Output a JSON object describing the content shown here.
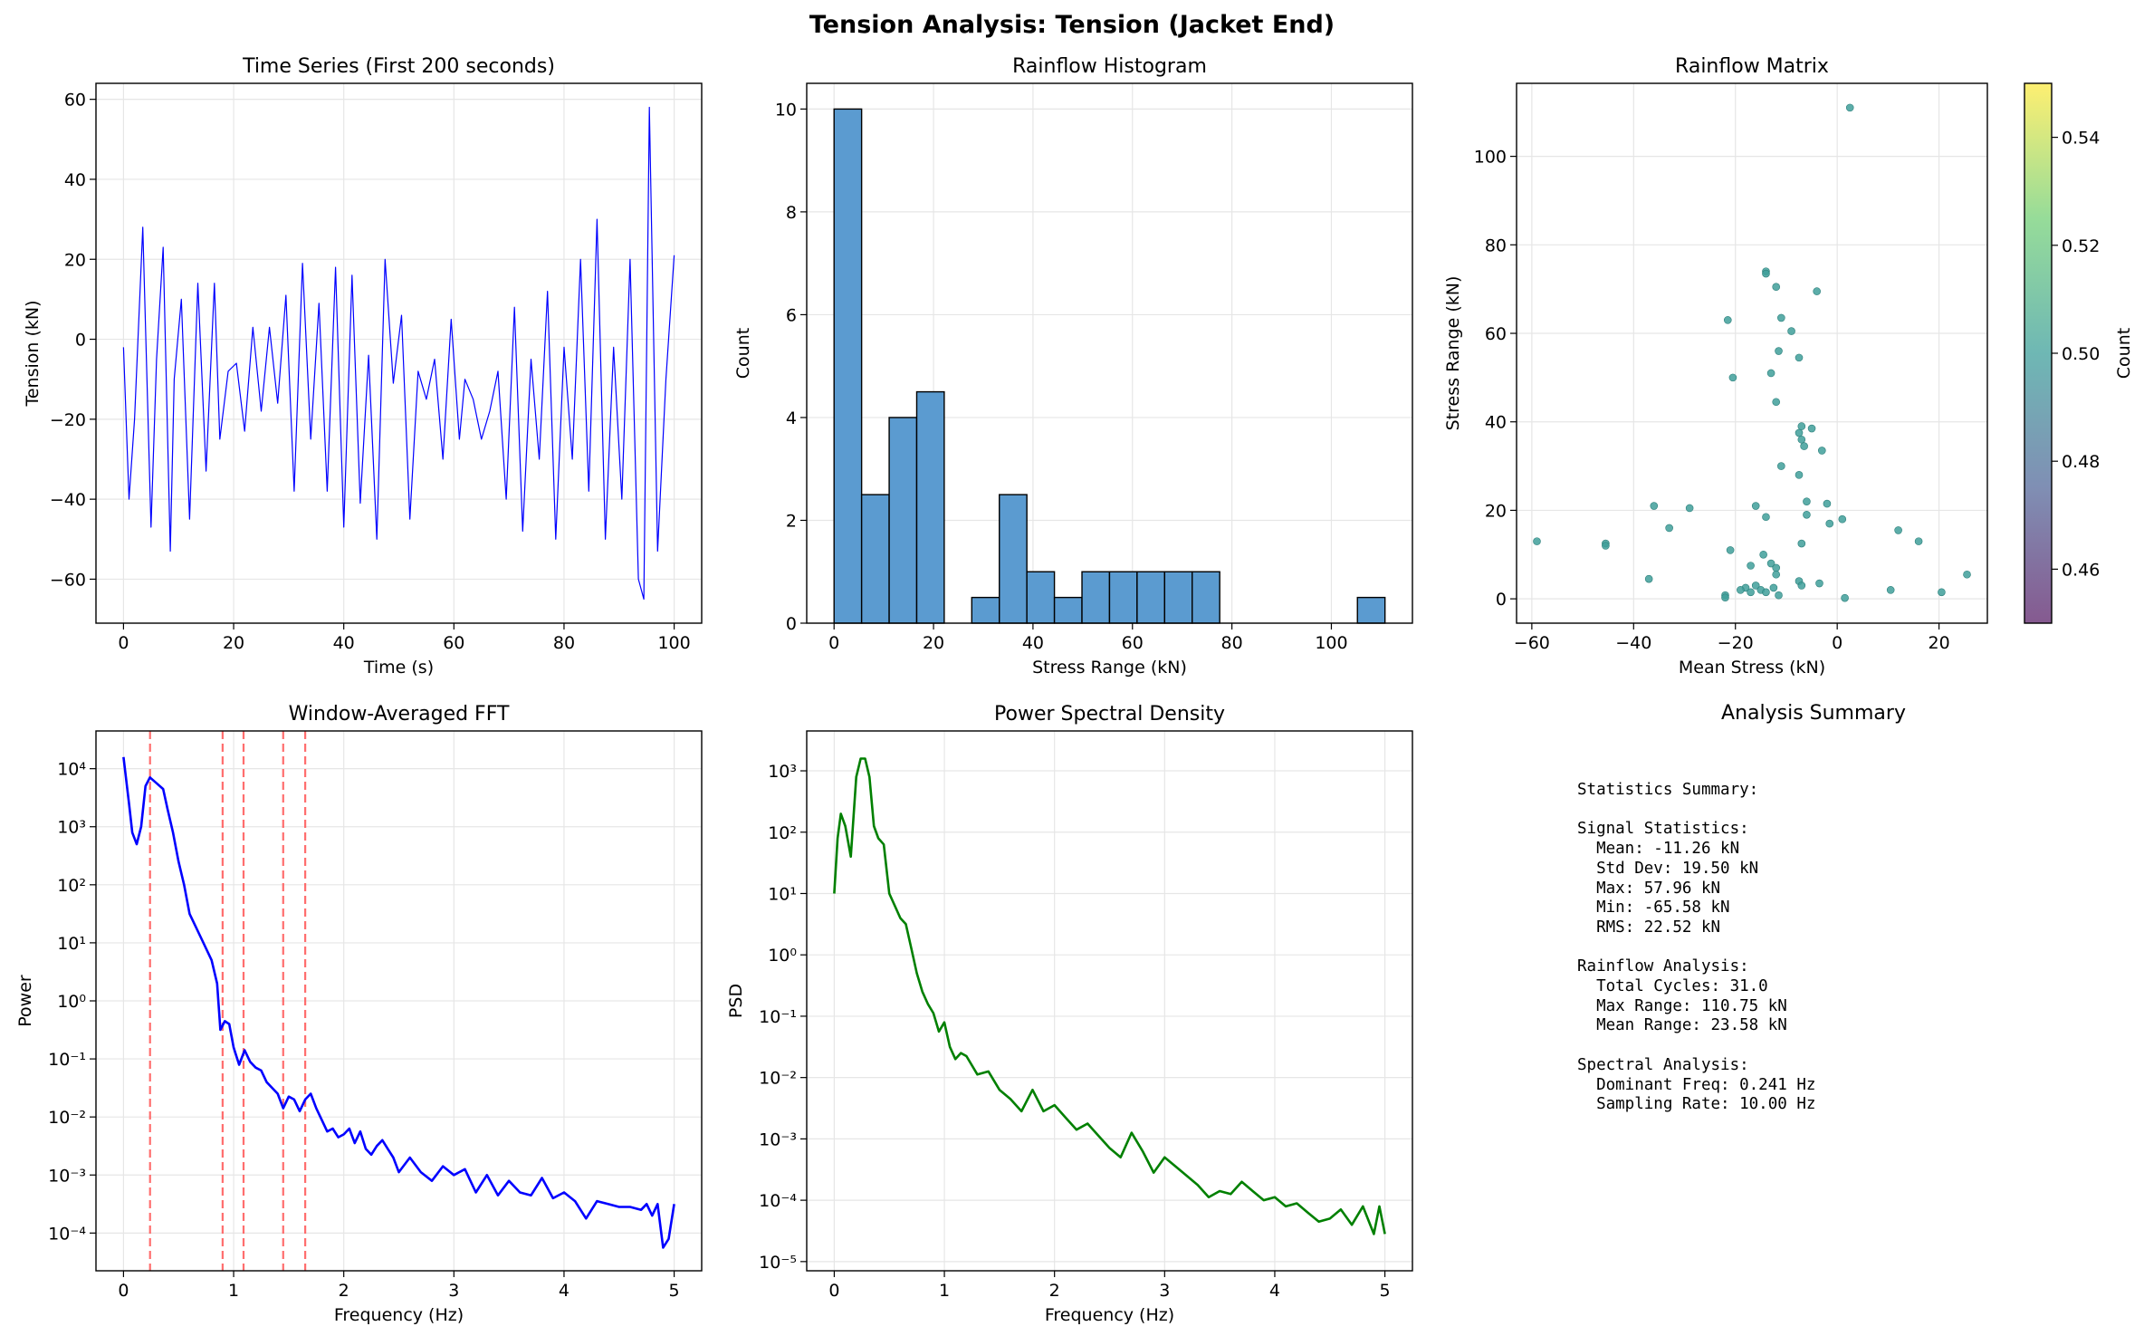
{
  "suptitle": "Tension Analysis: Tension (Jacket End)",
  "colors": {
    "timeseries": "#0000ff",
    "hist_fill": "#5b9bd0",
    "fft_line": "#0000ff",
    "fft_peak": "#ff5555",
    "psd_line": "#008000",
    "scatter": "#3f9f9a",
    "grid": "#e6e6e6"
  },
  "chart_data": [
    {
      "id": "timeseries",
      "type": "line",
      "title": "Time Series (First 200 seconds)",
      "xlabel": "Time (s)",
      "ylabel": "Tension (kN)",
      "xlim": [
        -5,
        105
      ],
      "ylim": [
        -71,
        64
      ],
      "xticks": [
        0,
        20,
        40,
        60,
        80,
        100
      ],
      "yticks": [
        -60,
        -40,
        -20,
        0,
        20,
        40,
        60
      ],
      "grid": true,
      "series": [
        {
          "x": [
            0,
            1,
            2,
            3.5,
            5,
            6,
            7.2,
            8.5,
            9.2,
            10.5,
            12,
            13.5,
            15,
            16.5,
            17.5,
            19,
            20.5,
            22,
            23.5,
            25,
            26.5,
            28,
            29.5,
            31,
            32.5,
            34,
            35.5,
            37,
            38.5,
            40,
            41.5,
            43,
            44.5,
            46,
            47.5,
            49,
            50.5,
            52,
            53.5,
            55,
            56.5,
            58,
            59.5,
            61,
            62,
            63.5,
            65,
            66.5,
            68,
            69.5,
            71,
            72.5,
            74,
            75.5,
            77,
            78.5,
            80,
            81.5,
            83,
            84.5,
            86,
            87.5,
            89,
            90.5,
            92,
            93.5,
            94.5,
            95.5,
            97,
            98.5,
            100
          ],
          "y": [
            -2,
            -40,
            -20,
            28,
            -47,
            -5,
            23,
            -53,
            -10,
            10,
            -45,
            14,
            -33,
            14,
            -25,
            -8,
            -6,
            -23,
            3,
            -18,
            3,
            -16,
            11,
            -38,
            19,
            -25,
            9,
            -38,
            18,
            -47,
            16,
            -41,
            -4,
            -50,
            20,
            -11,
            6,
            -45,
            -8,
            -15,
            -5,
            -30,
            5,
            -25,
            -10,
            -15,
            -25,
            -18,
            -8,
            -40,
            8,
            -48,
            -5,
            -30,
            12,
            -50,
            -2,
            -30,
            20,
            -38,
            30,
            -50,
            -2,
            -40,
            20,
            -60,
            -65,
            58,
            -53,
            -10,
            21
          ]
        }
      ]
    },
    {
      "id": "rainflow_hist",
      "type": "bar",
      "title": "Rainflow Histogram",
      "xlabel": "Stress Range (kN)",
      "ylabel": "Count",
      "xlim": [
        -5.5,
        116.3
      ],
      "ylim": [
        0,
        10.5
      ],
      "xticks": [
        0,
        20,
        40,
        60,
        80,
        100
      ],
      "yticks": [
        0,
        2,
        4,
        6,
        8,
        10
      ],
      "grid": true,
      "bin_edges": [
        0,
        5.54,
        11.08,
        16.62,
        22.15,
        27.69,
        33.23,
        38.77,
        44.31,
        49.85,
        55.39,
        60.93,
        66.47,
        72.01,
        77.55,
        83.09,
        88.62,
        94.16,
        99.7,
        105.24,
        110.78
      ],
      "values": [
        10,
        2.5,
        4,
        4.5,
        0,
        0.5,
        2.5,
        1,
        0.5,
        1,
        1,
        1,
        1,
        1,
        0,
        0,
        0,
        0,
        0,
        0.5
      ]
    },
    {
      "id": "rainflow_matrix",
      "type": "scatter",
      "title": "Rainflow Matrix",
      "xlabel": "Mean Stress (kN)",
      "ylabel": "Stress Range (kN)",
      "xlim": [
        -63,
        29.5
      ],
      "ylim": [
        -5.5,
        116.5
      ],
      "xticks": [
        -60,
        -40,
        -20,
        0,
        20
      ],
      "yticks": [
        0,
        20,
        40,
        60,
        80,
        100
      ],
      "grid": true,
      "colorbar": {
        "label": "Count",
        "range": [
          0.45,
          0.55
        ],
        "ticks": [
          0.46,
          0.48,
          0.5,
          0.52,
          0.54
        ]
      },
      "points": [
        [
          2.5,
          111
        ],
        [
          -14,
          74
        ],
        [
          -14,
          73.5
        ],
        [
          -12,
          70.5
        ],
        [
          -4,
          69.5
        ],
        [
          -11,
          63.5
        ],
        [
          -21.5,
          63
        ],
        [
          -9,
          60.5
        ],
        [
          -11.5,
          56
        ],
        [
          -7.5,
          54.5
        ],
        [
          -13,
          51
        ],
        [
          -20.5,
          50
        ],
        [
          -12,
          44.5
        ],
        [
          -7,
          39
        ],
        [
          -7.5,
          37.5
        ],
        [
          -7,
          36
        ],
        [
          -5,
          38.5
        ],
        [
          -6.5,
          34.5
        ],
        [
          -3,
          33.5
        ],
        [
          -11,
          30
        ],
        [
          -7.5,
          28
        ],
        [
          -6,
          22
        ],
        [
          -2,
          21.5
        ],
        [
          -36,
          21
        ],
        [
          -29,
          20.5
        ],
        [
          -16,
          21
        ],
        [
          -6,
          19
        ],
        [
          -14,
          18.5
        ],
        [
          1,
          18
        ],
        [
          -1.5,
          17
        ],
        [
          -33,
          16
        ],
        [
          12,
          15.5
        ],
        [
          16,
          13
        ],
        [
          -59,
          13
        ],
        [
          -45.5,
          12.5
        ],
        [
          -45.5,
          12
        ],
        [
          -7,
          12.5
        ],
        [
          -21,
          11
        ],
        [
          -14.5,
          10
        ],
        [
          -13,
          8
        ],
        [
          -12,
          7
        ],
        [
          -17,
          7.5
        ],
        [
          25.5,
          5.5
        ],
        [
          -12,
          5.5
        ],
        [
          -7.5,
          4
        ],
        [
          -7,
          3
        ],
        [
          -3.5,
          3.5
        ],
        [
          -37,
          4.5
        ],
        [
          -16,
          3
        ],
        [
          -18,
          2.5
        ],
        [
          -15,
          2
        ],
        [
          -12.5,
          2.5
        ],
        [
          10.5,
          2
        ],
        [
          20.5,
          1.5
        ],
        [
          -17,
          1.5
        ],
        [
          -14,
          1.5
        ],
        [
          -22,
          0.8
        ],
        [
          -22,
          0.3
        ],
        [
          -11.5,
          0.8
        ],
        [
          1.5,
          0.2
        ],
        [
          -19,
          2
        ]
      ]
    },
    {
      "id": "fft",
      "type": "line",
      "title": "Window-Averaged FFT",
      "xlabel": "Frequency (Hz)",
      "ylabel": "Power",
      "yscale": "log",
      "xlim": [
        -0.25,
        5.25
      ],
      "ylim_log10": [
        -4.65,
        4.65
      ],
      "xticks": [
        0,
        1,
        2,
        3,
        4,
        5
      ],
      "yticks_log10": [
        -4,
        -3,
        -2,
        -1,
        0,
        1,
        2,
        3,
        4
      ],
      "grid": true,
      "peak_markers": [
        0.241,
        0.9,
        1.09,
        1.45,
        1.65
      ],
      "series": [
        {
          "x": [
            0,
            0.05,
            0.08,
            0.12,
            0.16,
            0.2,
            0.24,
            0.3,
            0.36,
            0.4,
            0.45,
            0.5,
            0.55,
            0.6,
            0.7,
            0.8,
            0.85,
            0.88,
            0.92,
            0.96,
            1.0,
            1.05,
            1.1,
            1.15,
            1.2,
            1.25,
            1.3,
            1.35,
            1.4,
            1.45,
            1.5,
            1.55,
            1.6,
            1.65,
            1.7,
            1.75,
            1.8,
            1.85,
            1.9,
            1.95,
            2.0,
            2.05,
            2.1,
            2.15,
            2.2,
            2.25,
            2.3,
            2.35,
            2.4,
            2.45,
            2.5,
            2.6,
            2.7,
            2.8,
            2.9,
            3.0,
            3.1,
            3.2,
            3.3,
            3.4,
            3.5,
            3.6,
            3.7,
            3.8,
            3.9,
            4.0,
            4.1,
            4.2,
            4.3,
            4.4,
            4.5,
            4.6,
            4.7,
            4.75,
            4.8,
            4.85,
            4.9,
            4.95,
            5.0
          ],
          "y": [
            4.2,
            3.4,
            2.9,
            2.7,
            3.0,
            3.7,
            3.85,
            3.75,
            3.65,
            3.3,
            2.9,
            2.4,
            2.0,
            1.5,
            1.1,
            0.7,
            0.3,
            -0.5,
            -0.35,
            -0.4,
            -0.8,
            -1.1,
            -0.85,
            -1.05,
            -1.15,
            -1.2,
            -1.4,
            -1.5,
            -1.6,
            -1.85,
            -1.65,
            -1.7,
            -1.9,
            -1.7,
            -1.6,
            -1.85,
            -2.05,
            -2.25,
            -2.2,
            -2.35,
            -2.3,
            -2.2,
            -2.45,
            -2.25,
            -2.55,
            -2.65,
            -2.5,
            -2.4,
            -2.55,
            -2.7,
            -2.95,
            -2.7,
            -2.95,
            -3.1,
            -2.85,
            -3.0,
            -2.9,
            -3.3,
            -3.0,
            -3.35,
            -3.1,
            -3.3,
            -3.35,
            -3.05,
            -3.4,
            -3.3,
            -3.45,
            -3.75,
            -3.45,
            -3.5,
            -3.55,
            -3.55,
            -3.6,
            -3.5,
            -3.7,
            -3.5,
            -4.25,
            -4.1,
            -3.5
          ]
        }
      ]
    },
    {
      "id": "psd",
      "type": "line",
      "title": "Power Spectral Density",
      "xlabel": "Frequency (Hz)",
      "ylabel": "PSD",
      "yscale": "log",
      "xlim": [
        -0.25,
        5.25
      ],
      "ylim_log10": [
        -5.15,
        3.65
      ],
      "xticks": [
        0,
        1,
        2,
        3,
        4,
        5
      ],
      "yticks_log10": [
        -5,
        -4,
        -3,
        -2,
        -1,
        0,
        1,
        2,
        3
      ],
      "grid": true,
      "series": [
        {
          "x": [
            0,
            0.03,
            0.06,
            0.1,
            0.15,
            0.2,
            0.24,
            0.28,
            0.32,
            0.36,
            0.4,
            0.45,
            0.5,
            0.55,
            0.6,
            0.65,
            0.7,
            0.75,
            0.8,
            0.85,
            0.9,
            0.95,
            1.0,
            1.05,
            1.1,
            1.15,
            1.2,
            1.3,
            1.4,
            1.5,
            1.6,
            1.7,
            1.8,
            1.9,
            2.0,
            2.1,
            2.2,
            2.3,
            2.4,
            2.5,
            2.6,
            2.7,
            2.8,
            2.9,
            3.0,
            3.1,
            3.2,
            3.3,
            3.4,
            3.5,
            3.6,
            3.7,
            3.8,
            3.9,
            4.0,
            4.1,
            4.2,
            4.3,
            4.4,
            4.5,
            4.6,
            4.7,
            4.8,
            4.9,
            4.95,
            5.0
          ],
          "y": [
            1.0,
            1.9,
            2.3,
            2.1,
            1.6,
            2.9,
            3.2,
            3.2,
            2.9,
            2.1,
            1.9,
            1.8,
            1.0,
            0.8,
            0.6,
            0.5,
            0.1,
            -0.3,
            -0.6,
            -0.8,
            -0.95,
            -1.25,
            -1.1,
            -1.5,
            -1.7,
            -1.6,
            -1.65,
            -1.95,
            -1.9,
            -2.2,
            -2.35,
            -2.55,
            -2.2,
            -2.55,
            -2.45,
            -2.65,
            -2.85,
            -2.75,
            -2.95,
            -3.15,
            -3.3,
            -2.9,
            -3.2,
            -3.55,
            -3.3,
            -3.45,
            -3.6,
            -3.75,
            -3.95,
            -3.85,
            -3.9,
            -3.7,
            -3.85,
            -4.0,
            -3.95,
            -4.1,
            -4.05,
            -4.2,
            -4.35,
            -4.3,
            -4.15,
            -4.4,
            -4.1,
            -4.55,
            -4.1,
            -4.55
          ]
        }
      ]
    }
  ],
  "summary": {
    "title": "Analysis Summary",
    "text": "Statistics Summary:\n\nSignal Statistics:\n  Mean: -11.26 kN\n  Std Dev: 19.50 kN\n  Max: 57.96 kN\n  Min: -65.58 kN\n  RMS: 22.52 kN\n\nRainflow Analysis:\n  Total Cycles: 31.0\n  Max Range: 110.75 kN\n  Mean Range: 23.58 kN\n\nSpectral Analysis:\n  Dominant Freq: 0.241 Hz\n  Sampling Rate: 10.00 Hz"
  }
}
